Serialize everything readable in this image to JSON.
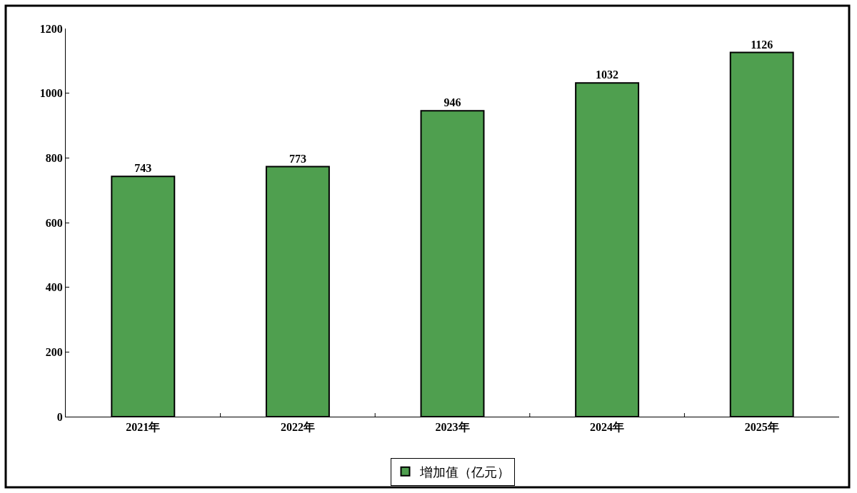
{
  "chart_data": {
    "type": "bar",
    "categories": [
      "2021年",
      "2022年",
      "2023年",
      "2024年",
      "2025年"
    ],
    "series": [
      {
        "name": "增加值（亿元）",
        "color": "#4f9f4f",
        "values": [
          743,
          773,
          946,
          1032,
          1126
        ]
      }
    ],
    "ylim": [
      0,
      1200
    ],
    "yticks": [
      0,
      200,
      400,
      600,
      800,
      1000,
      1200
    ],
    "data_labels": true,
    "legend": "bottom"
  }
}
